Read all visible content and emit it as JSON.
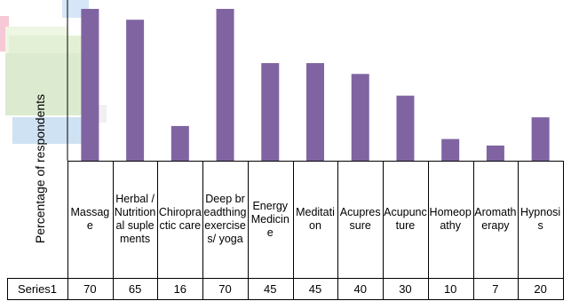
{
  "chart_data": {
    "type": "bar",
    "title": "",
    "xlabel": "",
    "ylabel": "Percentage of respondents",
    "categories": [
      "Massage",
      "Herbal / Nutritional suplements",
      "Chiropractic care",
      "Deep breadthing exercises/ yoga",
      "Energy Medicine",
      "Meditation",
      "Acupressure",
      "Acupuncture",
      "Homeopathy",
      "Aromatherapy",
      "Hypnosis"
    ],
    "series": [
      {
        "name": "Series1",
        "values": [
          70,
          65,
          16,
          70,
          45,
          45,
          40,
          30,
          10,
          7,
          20
        ]
      }
    ],
    "ylim": [
      0,
      70
    ],
    "grid": false,
    "legend": "data-table",
    "colors": {
      "bar": "#8064a2",
      "table_line": "#000000"
    }
  }
}
